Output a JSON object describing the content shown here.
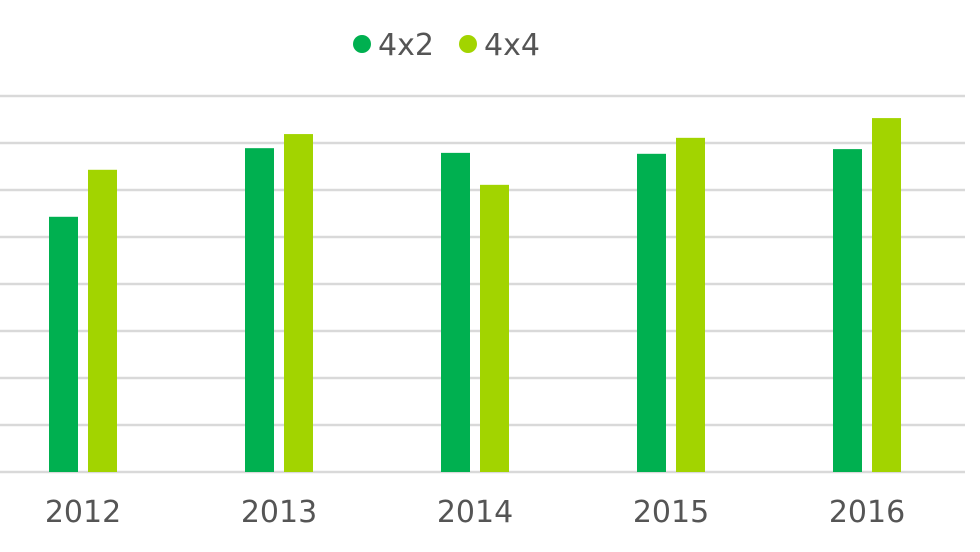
{
  "chart_data": {
    "type": "bar",
    "title": "",
    "xlabel": "",
    "ylabel": "",
    "categories": [
      "2012",
      "2013",
      "2014",
      "2015",
      "2016"
    ],
    "series": [
      {
        "name": "4x2",
        "color": "#00b050",
        "values": [
          5.43,
          6.89,
          6.79,
          6.77,
          6.87
        ]
      },
      {
        "name": "4x4",
        "color": "#a2d400",
        "values": [
          6.43,
          7.19,
          6.11,
          7.11,
          7.53
        ]
      }
    ],
    "ylim": [
      0,
      8
    ],
    "y_tick_labels_shown": false,
    "grid": true,
    "legend": "top-center"
  }
}
